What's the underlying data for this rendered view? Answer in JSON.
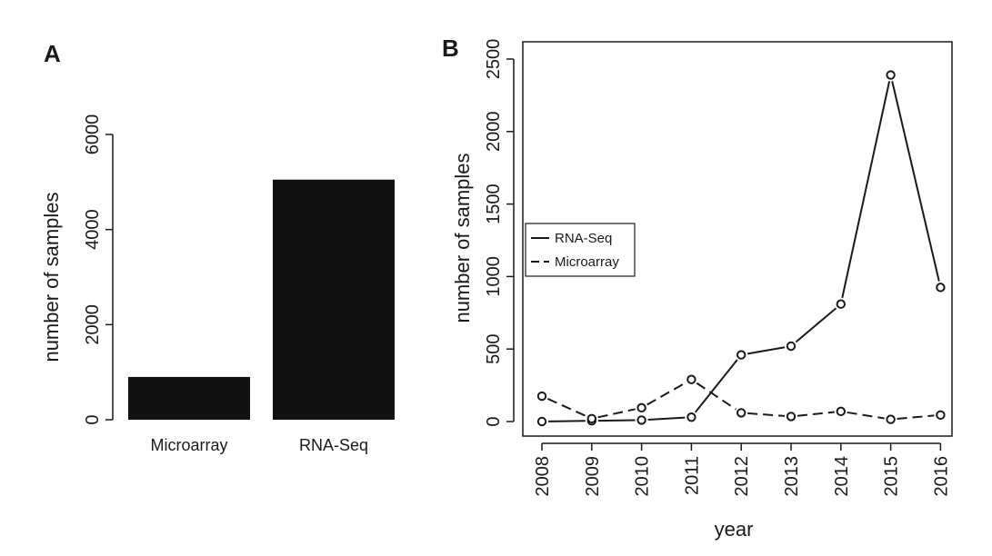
{
  "chart_data": [
    {
      "panel": "A",
      "type": "bar",
      "categories": [
        "Microarray",
        "RNA-Seq"
      ],
      "values": [
        900,
        5050
      ],
      "ylabel": "number of samples",
      "xlabel": "",
      "ylim": [
        0,
        6000
      ],
      "yticks": [
        0,
        2000,
        4000,
        6000
      ],
      "colors": {
        "bar": "#111111"
      }
    },
    {
      "panel": "B",
      "type": "line",
      "x": [
        "2008",
        "2009",
        "2010",
        "2011",
        "2012",
        "2013",
        "2014",
        "2015",
        "2016"
      ],
      "series": [
        {
          "name": "RNA-Seq",
          "style": "solid",
          "values": [
            0,
            5,
            10,
            30,
            460,
            520,
            810,
            2390,
            925
          ]
        },
        {
          "name": "Microarray",
          "style": "dashed",
          "values": [
            175,
            20,
            95,
            290,
            60,
            35,
            70,
            15,
            45
          ]
        }
      ],
      "xlabel": "year",
      "ylabel": "number of samples",
      "ylim": [
        0,
        2500
      ],
      "yticks": [
        0,
        500,
        1000,
        1500,
        2000,
        2500
      ],
      "legend_position": "middle-left",
      "grid": false
    }
  ]
}
